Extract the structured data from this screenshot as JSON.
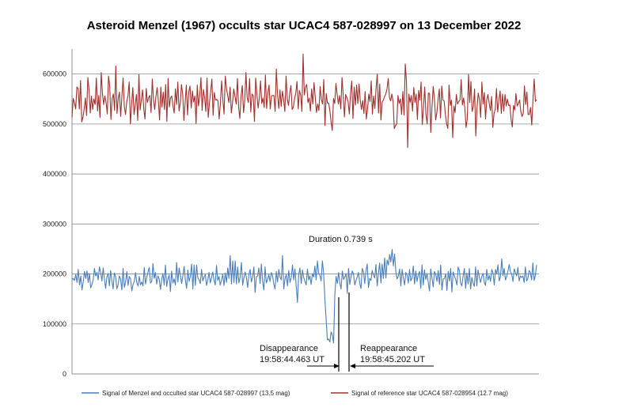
{
  "chart_data": {
    "type": "line",
    "title": "Asteroid Menzel (1967) occults star UCAC4 587-028997 on 13 December 2022",
    "xlabel": "",
    "ylabel": "",
    "ylim": [
      0,
      650000
    ],
    "yticks": [
      0,
      100000,
      200000,
      300000,
      400000,
      500000,
      600000
    ],
    "ytick_labels": [
      "0",
      "100000",
      "200000",
      "300000",
      "400000",
      "500000",
      "600000"
    ],
    "grid": "horizontal",
    "legend_position": "bottom",
    "series": [
      {
        "name": "Signal of Menzel and occulted star UCAC4 587-028997 (13.5 mag)",
        "color": "#4a7ebb",
        "values": [
          189000,
          191000,
          187000,
          199000,
          183000,
          209000,
          178000,
          196000,
          168000,
          184000,
          205000,
          191000,
          206000,
          183000,
          201000,
          172000,
          179000,
          188000,
          211000,
          196000,
          203000,
          188000,
          214000,
          203000,
          186000,
          212000,
          190000,
          171000,
          194000,
          201000,
          176000,
          207000,
          186000,
          170000,
          202000,
          195000,
          170000,
          178000,
          196000,
          190000,
          168000,
          211000,
          173000,
          184000,
          205000,
          177000,
          195000,
          190000,
          166000,
          179000,
          185000,
          203000,
          183000,
          176000,
          195000,
          178000,
          184000,
          176000,
          213000,
          180000,
          193000,
          204000,
          213000,
          182000,
          185000,
          221000,
          191000,
          203000,
          180000,
          196000,
          190000,
          169000,
          189000,
          201000,
          178000,
          218000,
          175000,
          190000,
          198000,
          165000,
          206000,
          182000,
          190000,
          178000,
          223000,
          184000,
          212000,
          197000,
          181000,
          196000,
          215000,
          188000,
          171000,
          208000,
          185000,
          195000,
          220000,
          170000,
          218000,
          177000,
          218000,
          192000,
          189000,
          181000,
          209000,
          186000,
          194000,
          199000,
          177000,
          188000,
          203000,
          182000,
          193000,
          204000,
          188000,
          178000,
          217000,
          187000,
          195000,
          178000,
          187000,
          200000,
          177000,
          202000,
          183000,
          212000,
          191000,
          237000,
          180000,
          226000,
          183000,
          226000,
          180000,
          214000,
          182000,
          194000,
          223000,
          178000,
          192000,
          204000,
          193000,
          173000,
          199000,
          209000,
          184000,
          194000,
          214000,
          163000,
          194000,
          196000,
          212000,
          181000,
          220000,
          186000,
          168000,
          214000,
          182000,
          189000,
          199000,
          185000,
          203000,
          196000,
          180000,
          170000,
          205000,
          184000,
          209000,
          194000,
          188000,
          237000,
          170000,
          190000,
          199000,
          176000,
          207000,
          183000,
          193000,
          218000,
          188000,
          210000,
          176000,
          143000,
          199000,
          212000,
          181000,
          208000,
          193000,
          185000,
          178000,
          210000,
          188000,
          196000,
          179000,
          201000,
          194000,
          216000,
          188000,
          226000,
          202000,
          197000,
          186000,
          226000,
          202000,
          150000,
          110000,
          68000,
          70000,
          64000,
          84000,
          78000,
          62000,
          158000,
          195000,
          181000,
          203000,
          182000,
          170000,
          206000,
          189000,
          194000,
          201000,
          161000,
          211000,
          179000,
          194000,
          206000,
          200000,
          178000,
          187000,
          194000,
          203000,
          181000,
          171000,
          211000,
          205000,
          181000,
          206000,
          220000,
          173000,
          191000,
          187000,
          207000,
          198000,
          192000,
          219000,
          176000,
          201000,
          222000,
          182000,
          220000,
          191000,
          232000,
          192000,
          228000,
          218000,
          239000,
          224000,
          249000,
          216000,
          240000,
          204000,
          190000,
          196000,
          210000,
          176000,
          209000,
          192000,
          178000,
          203000,
          198000,
          182000,
          209000,
          186000,
          192000,
          216000,
          180000,
          206000,
          185000,
          198000,
          205000,
          171000,
          218000,
          178000,
          208000,
          189000,
          201000,
          183000,
          166000,
          210000,
          191000,
          174000,
          205000,
          199000,
          185000,
          207000,
          179000,
          218000,
          168000,
          190000,
          191000,
          200000,
          167000,
          205000,
          186000,
          211000,
          164000,
          204000,
          196000,
          189000,
          178000,
          214000,
          207000,
          182000,
          176000,
          196000,
          211000,
          171000,
          202000,
          180000,
          211000,
          170000,
          193000,
          182000,
          175000,
          214000,
          176000,
          208000,
          194000,
          183000,
          195000,
          201000,
          183000,
          177000,
          209000,
          188000,
          197000,
          185000,
          209000,
          202000,
          178000,
          209000,
          200000,
          218000,
          186000,
          195000,
          230000,
          197000,
          211000,
          188000,
          195000,
          206000,
          219000,
          204000,
          200000,
          185000,
          210000,
          203000,
          196000,
          213000,
          186000,
          196000,
          193000,
          196000,
          183000,
          214000,
          186000,
          191000,
          207000,
          203000,
          188000,
          222000,
          187000,
          197000,
          218000
        ]
      },
      {
        "name": "Signal of reference star UCAC4 587-028954 (12.7 mag)",
        "color": "#a0302c",
        "values": [
          513000,
          551000,
          543000,
          530000,
          574000,
          571000,
          530000,
          587000,
          504000,
          514000,
          530000,
          552000,
          517000,
          593000,
          569000,
          522000,
          556000,
          529000,
          550000,
          539000,
          592000,
          526000,
          557000,
          513000,
          603000,
          562000,
          539000,
          556000,
          543000,
          520000,
          596000,
          575000,
          509000,
          551000,
          560000,
          527000,
          616000,
          521000,
          551000,
          564000,
          515000,
          555000,
          592000,
          535000,
          519000,
          545000,
          557000,
          584000,
          500000,
          539000,
          573000,
          519000,
          539000,
          559000,
          507000,
          599000,
          528000,
          548000,
          568000,
          530000,
          510000,
          571000,
          543000,
          553000,
          557000,
          523000,
          590000,
          548000,
          529000,
          555000,
          573000,
          546000,
          508000,
          574000,
          534000,
          564000,
          529000,
          579000,
          505000,
          591000,
          534000,
          552000,
          556000,
          536000,
          522000,
          570000,
          539000,
          584000,
          526000,
          542000,
          579000,
          560000,
          507000,
          543000,
          578000,
          518000,
          564000,
          576000,
          532000,
          566000,
          544000,
          556000,
          501000,
          578000,
          536000,
          556000,
          593000,
          527000,
          569000,
          554000,
          525000,
          592000,
          513000,
          542000,
          565000,
          590000,
          517000,
          563000,
          548000,
          549000,
          546000,
          510000,
          542000,
          586000,
          549000,
          520000,
          596000,
          571000,
          557000,
          543000,
          574000,
          522000,
          543000,
          570000,
          555000,
          540000,
          591000,
          533000,
          511000,
          557000,
          577000,
          523000,
          546000,
          603000,
          553000,
          543000,
          591000,
          524000,
          560000,
          557000,
          505000,
          592000,
          560000,
          532000,
          551000,
          586000,
          541000,
          552000,
          533000,
          598000,
          531000,
          561000,
          578000,
          530000,
          556000,
          557000,
          557000,
          525000,
          610000,
          559000,
          531000,
          568000,
          535000,
          566000,
          549000,
          525000,
          596000,
          550000,
          537000,
          562000,
          577000,
          529000,
          534000,
          551000,
          562000,
          585000,
          530000,
          567000,
          558000,
          525000,
          640000,
          558000,
          574000,
          579000,
          543000,
          552000,
          526000,
          570000,
          540000,
          583000,
          553000,
          523000,
          540000,
          527000,
          575000,
          549000,
          540000,
          589000,
          497000,
          561000,
          542000,
          542000,
          527000,
          504000,
          487000,
          551000,
          541000,
          581000,
          559000,
          540000,
          557000,
          530000,
          593000,
          557000,
          514000,
          559000,
          553000,
          545000,
          520000,
          561000,
          586000,
          511000,
          574000,
          538000,
          578000,
          541000,
          580000,
          547000,
          529000,
          547000,
          521000,
          565000,
          510000,
          530000,
          560000,
          545000,
          586000,
          520000,
          556000,
          531000,
          572000,
          600000,
          522000,
          580000,
          508000,
          544000,
          548000,
          555000,
          560000,
          570000,
          591000,
          553000,
          546000,
          560000,
          545000,
          491000,
          497000,
          500000,
          557000,
          541000,
          550000,
          519000,
          565000,
          518000,
          620000,
          585000,
          453000,
          560000,
          543000,
          557000,
          526000,
          573000,
          543000,
          560000,
          509000,
          567000,
          548000,
          584000,
          499000,
          533000,
          574000,
          520000,
          500000,
          562000,
          561000,
          483000,
          536000,
          575000,
          550000,
          508000,
          523000,
          549000,
          570000,
          512000,
          576000,
          548000,
          546000,
          519000,
          500000,
          491000,
          578000,
          537000,
          548000,
          473000,
          536000,
          523000,
          559000,
          540000,
          545000,
          548000,
          589000,
          538000,
          552000,
          532000,
          493000,
          510000,
          599000,
          543000,
          585000,
          525000,
          535000,
          570000,
          476000,
          532000,
          562000,
          549000,
          513000,
          584000,
          540000,
          563000,
          510000,
          548000,
          559000,
          542000,
          527000,
          555000,
          493000,
          521000,
          529000,
          571000,
          524000,
          548000,
          566000,
          521000,
          560000,
          526000,
          559000,
          536000,
          550000,
          537000,
          538000,
          509000,
          494000,
          537000,
          528000,
          561000,
          536000,
          541000,
          548000,
          525000,
          515000,
          521000,
          576000,
          539000,
          564000,
          519000,
          519000,
          533000,
          498000,
          548000,
          590000,
          545000,
          549000
        ]
      }
    ],
    "annotations": {
      "duration": "Duration 0.739 s",
      "disappearance_label": "Disappearance",
      "disappearance_time": "19:58:44.463 UT",
      "reappearance_label": "Reappearance",
      "reappearance_time": "19:58:45.202 UT"
    }
  }
}
